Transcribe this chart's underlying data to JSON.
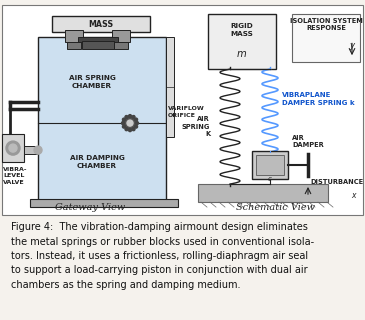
{
  "fig_width": 3.65,
  "fig_height": 3.2,
  "dpi": 100,
  "bg_color": "#f5f2ed",
  "diagram_bg": "#ffffff",
  "inner_bg": "#cde0f0",
  "border_color": "#777777",
  "caption_text": "Figure 4:  The vibration-damping airmount design eliminates\nthe metal springs or rubber blocks used in conventional isola-\ntors. Instead, it uses a frictionless, rolling-diaphragm air seal\nto support a load-carrying piston in conjunction with dual air\nchambers as the spring and damping medium.",
  "caption_fontsize": 7.0,
  "gateway_label": "Gateway View",
  "schematic_label": "Schematic View",
  "label_fontsize": 7.0,
  "small_fs": 5.2,
  "tiny_fs": 4.5,
  "blue_color": "#5599ff",
  "vibraplane_color": "#1155cc",
  "dark": "#222222",
  "mid": "#666666",
  "light_gray": "#cccccc",
  "med_gray": "#aaaaaa",
  "dark_gray": "#888888"
}
